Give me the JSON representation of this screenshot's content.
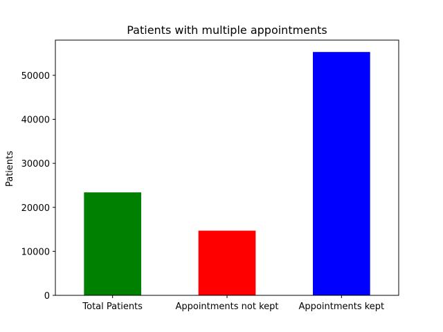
{
  "chart_data": {
    "type": "bar",
    "title": "Patients with multiple appointments",
    "xlabel": "",
    "ylabel": "Patients",
    "categories": [
      "Total Patients",
      "Appointments not kept",
      "Appointments kept"
    ],
    "values": [
      23400,
      14700,
      55300
    ],
    "colors": [
      "#008000",
      "#ff0000",
      "#0000ff"
    ],
    "ylim": [
      0,
      58000
    ],
    "yticks": [
      0,
      10000,
      20000,
      30000,
      40000,
      50000
    ],
    "ytick_labels": [
      "0",
      "10000",
      "20000",
      "30000",
      "40000",
      "50000"
    ],
    "grid": false,
    "legend": "none"
  }
}
